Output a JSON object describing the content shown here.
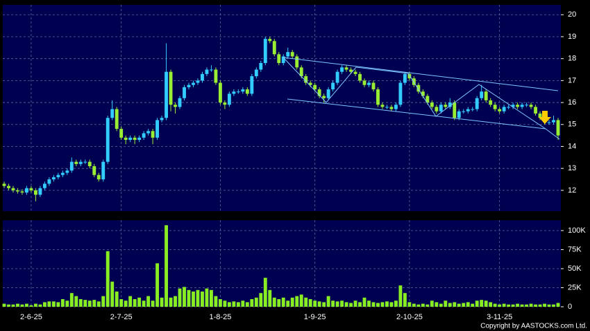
{
  "chart_data": [
    {
      "type": "candlestick",
      "categories": [
        null,
        null,
        null,
        null,
        null,
        null,
        "2-6-25",
        null,
        null,
        null,
        null,
        null,
        null,
        null,
        null,
        null,
        null,
        null,
        null,
        null,
        null,
        null,
        null,
        null,
        null,
        null,
        "2-7-25",
        null,
        null,
        null,
        null,
        null,
        null,
        null,
        null,
        null,
        null,
        null,
        null,
        null,
        null,
        null,
        null,
        null,
        null,
        null,
        null,
        null,
        "1-8-25",
        null,
        null,
        null,
        null,
        null,
        null,
        null,
        null,
        null,
        null,
        null,
        null,
        null,
        null,
        null,
        null,
        null,
        null,
        null,
        null,
        "1-9-25",
        null,
        null,
        null,
        null,
        null,
        null,
        null,
        null,
        null,
        null,
        null,
        null,
        null,
        null,
        null,
        null,
        null,
        null,
        null,
        null,
        "2-10-25",
        null,
        null,
        null,
        null,
        null,
        null,
        null,
        null,
        null,
        null,
        null,
        null,
        null,
        null,
        null,
        null,
        null,
        null,
        null,
        "3-11-25",
        null,
        null,
        null,
        null,
        null,
        null,
        null,
        null,
        null,
        null,
        null,
        null,
        null
      ],
      "open": [
        12.3,
        12.2,
        12.1,
        12.0,
        11.95,
        11.9,
        12.1,
        12.0,
        11.8,
        12.1,
        12.3,
        12.5,
        12.6,
        12.7,
        12.8,
        12.9,
        13.3,
        13.2,
        13.3,
        13.3,
        13.1,
        12.7,
        12.5,
        13.3,
        15.3,
        15.7,
        14.8,
        14.4,
        14.3,
        14.4,
        14.3,
        14.4,
        14.6,
        14.7,
        14.4,
        15.2,
        15.3,
        17.4,
        15.9,
        15.8,
        16.2,
        16.7,
        16.8,
        16.9,
        17.0,
        17.3,
        17.5,
        17.5,
        16.9,
        16.0,
        15.9,
        16.4,
        16.5,
        16.5,
        16.6,
        16.4,
        17.2,
        17.5,
        17.8,
        18.9,
        18.8,
        18.2,
        17.8,
        18.1,
        18.3,
        18.1,
        17.6,
        17.2,
        16.9,
        16.8,
        16.6,
        16.3,
        16.2,
        16.6,
        16.9,
        17.4,
        17.6,
        17.5,
        17.4,
        17.3,
        17.0,
        16.8,
        16.9,
        16.6,
        15.9,
        15.8,
        15.8,
        15.7,
        15.9,
        16.9,
        17.3,
        17.1,
        16.8,
        16.5,
        16.3,
        16.0,
        15.8,
        15.6,
        15.9,
        15.8,
        16.0,
        15.3,
        15.6,
        15.6,
        15.7,
        15.7,
        16.2,
        16.5,
        16.1,
        15.9,
        15.7,
        15.6,
        15.8,
        15.8,
        15.9,
        15.8,
        15.9,
        15.9,
        15.8,
        15.5,
        15.3,
        15.1,
        15.1,
        15.2
      ],
      "high": [
        12.4,
        12.3,
        12.2,
        12.1,
        12.05,
        12.2,
        12.2,
        12.1,
        12.2,
        12.4,
        12.6,
        12.7,
        12.8,
        12.9,
        13.0,
        13.5,
        13.4,
        13.4,
        13.4,
        13.4,
        13.2,
        12.8,
        13.4,
        15.4,
        16.1,
        15.8,
        14.9,
        14.5,
        14.5,
        14.5,
        14.5,
        14.7,
        14.8,
        14.8,
        15.3,
        15.4,
        18.7,
        17.5,
        16.0,
        16.3,
        16.8,
        16.9,
        17.0,
        17.1,
        17.4,
        17.6,
        17.7,
        17.6,
        17.0,
        16.1,
        16.5,
        16.6,
        16.6,
        16.7,
        16.7,
        17.3,
        17.6,
        17.9,
        19.0,
        19.0,
        18.9,
        18.3,
        18.2,
        18.5,
        18.4,
        18.2,
        17.7,
        17.3,
        17.0,
        16.9,
        16.7,
        16.4,
        16.7,
        17.0,
        17.5,
        17.7,
        17.7,
        17.6,
        17.5,
        17.4,
        17.1,
        17.0,
        17.0,
        16.7,
        16.0,
        15.9,
        15.9,
        16.0,
        17.0,
        17.4,
        17.4,
        17.2,
        16.9,
        16.6,
        16.4,
        16.1,
        15.9,
        16.0,
        16.0,
        16.2,
        16.1,
        15.7,
        15.7,
        15.8,
        15.8,
        16.3,
        16.8,
        16.6,
        16.2,
        16.0,
        15.8,
        15.9,
        15.9,
        16.0,
        16.0,
        16.0,
        16.0,
        16.0,
        15.9,
        15.6,
        15.5,
        15.2,
        15.4,
        15.3
      ],
      "low": [
        12.1,
        12.0,
        11.9,
        11.85,
        11.8,
        11.8,
        11.9,
        11.5,
        11.7,
        12.0,
        12.2,
        12.4,
        12.5,
        12.6,
        12.7,
        12.8,
        13.1,
        13.1,
        13.2,
        13.0,
        12.6,
        12.4,
        12.4,
        13.2,
        15.2,
        14.7,
        14.3,
        14.1,
        14.2,
        14.1,
        14.2,
        14.3,
        14.5,
        14.1,
        14.3,
        15.1,
        15.2,
        15.6,
        15.5,
        15.7,
        16.1,
        16.6,
        16.7,
        16.8,
        16.9,
        17.2,
        17.4,
        16.8,
        15.9,
        15.7,
        15.8,
        16.3,
        16.4,
        16.4,
        16.3,
        16.3,
        17.1,
        17.4,
        17.7,
        18.7,
        18.1,
        17.7,
        17.7,
        18.0,
        18.0,
        17.5,
        17.1,
        16.8,
        16.7,
        16.5,
        16.2,
        16.0,
        16.1,
        16.5,
        16.8,
        17.3,
        17.4,
        17.3,
        17.2,
        16.9,
        16.7,
        16.7,
        16.5,
        15.8,
        15.7,
        15.7,
        15.6,
        15.6,
        15.8,
        16.8,
        17.0,
        16.7,
        16.4,
        16.2,
        15.9,
        15.7,
        15.5,
        15.5,
        15.7,
        15.7,
        15.2,
        15.2,
        15.5,
        15.5,
        15.6,
        15.6,
        16.1,
        16.0,
        15.8,
        15.6,
        15.5,
        15.5,
        15.7,
        15.7,
        15.7,
        15.7,
        15.8,
        15.7,
        15.4,
        15.2,
        15.0,
        15.0,
        15.0,
        14.3
      ],
      "close": [
        12.2,
        12.1,
        12.0,
        11.95,
        11.9,
        12.1,
        12.0,
        11.8,
        12.1,
        12.3,
        12.5,
        12.6,
        12.7,
        12.8,
        12.9,
        13.3,
        13.2,
        13.3,
        13.3,
        13.1,
        12.7,
        12.5,
        13.3,
        15.3,
        15.7,
        14.8,
        14.4,
        14.3,
        14.4,
        14.3,
        14.4,
        14.6,
        14.7,
        14.4,
        15.2,
        15.3,
        17.4,
        15.9,
        15.8,
        16.2,
        16.7,
        16.8,
        16.9,
        17.0,
        17.3,
        17.5,
        17.5,
        16.9,
        16.0,
        15.9,
        16.4,
        16.5,
        16.5,
        16.6,
        16.4,
        17.2,
        17.5,
        17.8,
        18.9,
        18.8,
        18.2,
        17.8,
        18.1,
        18.3,
        18.1,
        17.6,
        17.2,
        16.9,
        16.8,
        16.6,
        16.3,
        16.2,
        16.6,
        16.9,
        17.4,
        17.6,
        17.5,
        17.4,
        17.3,
        17.0,
        16.8,
        16.9,
        16.6,
        15.9,
        15.8,
        15.8,
        15.7,
        15.9,
        16.9,
        17.3,
        17.1,
        16.8,
        16.5,
        16.3,
        16.0,
        15.8,
        15.6,
        15.9,
        15.8,
        16.0,
        15.3,
        15.6,
        15.6,
        15.7,
        15.7,
        16.2,
        16.5,
        16.1,
        15.9,
        15.7,
        15.6,
        15.8,
        15.8,
        15.9,
        15.8,
        15.9,
        15.9,
        15.8,
        15.5,
        15.3,
        15.1,
        15.1,
        15.2,
        14.5
      ],
      "up_color": "#33ccff",
      "down_color": "#99ee33",
      "background": "#000050",
      "ylim": [
        11.05,
        20.45
      ],
      "yticks": [
        12,
        13,
        14,
        15,
        16,
        17,
        18,
        19,
        20
      ],
      "grid": true
    },
    {
      "type": "bar",
      "values": [
        4000,
        3000,
        3000,
        4000,
        3000,
        4000,
        2000,
        4000,
        3000,
        6000,
        7000,
        7000,
        6000,
        10000,
        8000,
        18000,
        14000,
        10000,
        9000,
        8000,
        9000,
        7000,
        14000,
        73000,
        33000,
        20000,
        10000,
        8000,
        14000,
        10000,
        12000,
        8000,
        14000,
        8000,
        57000,
        12000,
        107000,
        12000,
        14000,
        24000,
        26000,
        22000,
        20000,
        22000,
        20000,
        24000,
        22000,
        14000,
        10000,
        8000,
        6000,
        7000,
        6000,
        8000,
        6000,
        10000,
        12000,
        18000,
        38000,
        22000,
        12000,
        10000,
        12000,
        8000,
        12000,
        14000,
        16000,
        12000,
        10000,
        8000,
        7000,
        6000,
        14000,
        8000,
        7000,
        8000,
        6000,
        5000,
        8000,
        6000,
        12000,
        8000,
        6000,
        5000,
        6000,
        7000,
        6000,
        8000,
        28000,
        18000,
        6000,
        4000,
        3000,
        4000,
        3000,
        8000,
        6000,
        4000,
        8000,
        5000,
        6000,
        4000,
        5000,
        6000,
        4000,
        8000,
        9000,
        8000,
        6000,
        4000,
        3000,
        4000,
        3000,
        3000,
        4000,
        3000,
        3000,
        4000,
        3000,
        3000,
        4000,
        3000,
        3000,
        5000
      ],
      "color": "#88ee22",
      "ylim": [
        0,
        113600
      ],
      "yticks": [
        0,
        {
          "value": 25000,
          "label": "25K"
        },
        {
          "value": 50000,
          "label": "50K"
        },
        {
          "value": 75000,
          "label": "75K"
        },
        {
          "value": 100000,
          "label": "100K"
        }
      ],
      "grid": true
    }
  ],
  "copyright": "Copyright by AASTOCKS.com Ltd."
}
